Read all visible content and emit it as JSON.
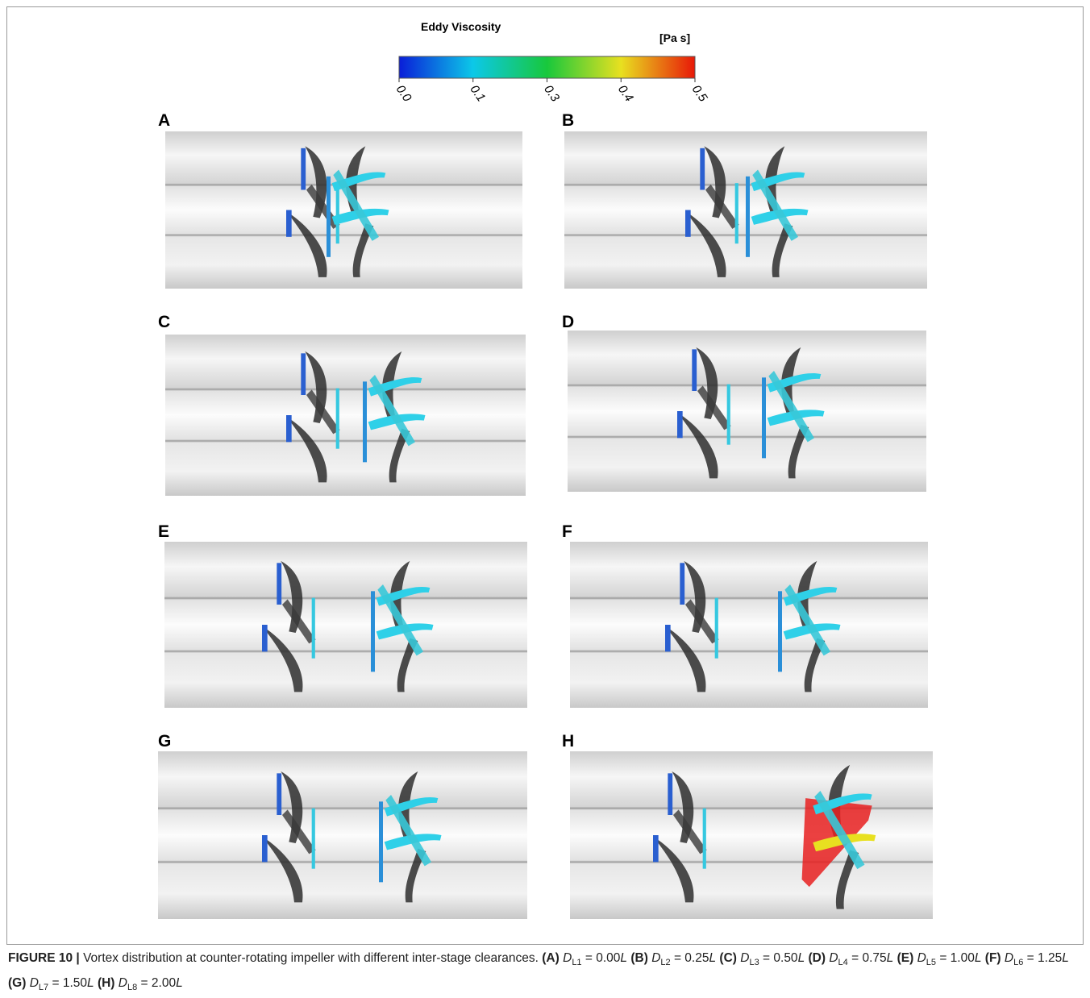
{
  "colorbar": {
    "title": "Eddy Viscosity",
    "unit": "[Pa s]",
    "range": [
      0,
      0.5
    ],
    "ticks": [
      {
        "value": 0,
        "label": "0.0"
      },
      {
        "value": 0.125,
        "label": "0.1"
      },
      {
        "value": 0.25,
        "label": "0.3"
      },
      {
        "value": 0.375,
        "label": "0.4"
      },
      {
        "value": 0.5,
        "label": "0.5"
      }
    ]
  },
  "panels": [
    "A",
    "B",
    "C",
    "D",
    "E",
    "F",
    "G",
    "H"
  ],
  "caption": {
    "label": "FIGURE 10 |",
    "text": "Vortex distribution at counter-rotating impeller with different inter-stage clearances.",
    "items": [
      {
        "tag": "(A)",
        "symbol": "D",
        "subscript": "L1",
        "value": "= 0.00",
        "unit": "L"
      },
      {
        "tag": "(B)",
        "symbol": "D",
        "subscript": "L2",
        "value": "= 0.25",
        "unit": "L"
      },
      {
        "tag": "(C)",
        "symbol": "D",
        "subscript": "L3",
        "value": "= 0.50",
        "unit": "L"
      },
      {
        "tag": "(D)",
        "symbol": "D",
        "subscript": "L4",
        "value": "= 0.75",
        "unit": "L"
      },
      {
        "tag": "(E)",
        "symbol": "D",
        "subscript": "L5",
        "value": "= 1.00",
        "unit": "L"
      },
      {
        "tag": "(F)",
        "symbol": "D",
        "subscript": "L6",
        "value": "= 1.25",
        "unit": "L"
      },
      {
        "tag": "(G)",
        "symbol": "D",
        "subscript": "L7",
        "value": "= 1.50",
        "unit": "L"
      },
      {
        "tag": "(H)",
        "symbol": "D",
        "subscript": "L8",
        "value": "= 2.00",
        "unit": "L"
      }
    ]
  }
}
